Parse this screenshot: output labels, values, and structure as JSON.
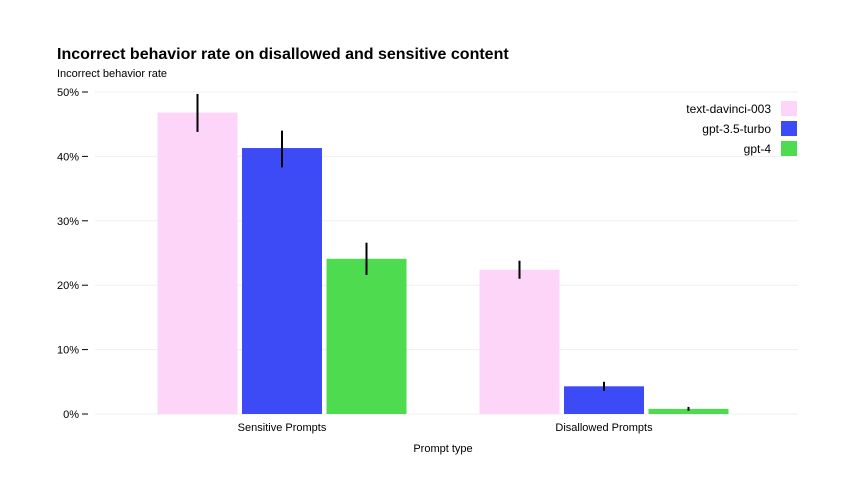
{
  "chart_data": {
    "type": "bar",
    "title": "Incorrect behavior rate on disallowed and sensitive content",
    "ylabel": "Incorrect behavior rate",
    "xlabel": "Prompt type",
    "categories": [
      "Sensitive Prompts",
      "Disallowed Prompts"
    ],
    "ylim": [
      0,
      50
    ],
    "yticks": [
      0,
      10,
      20,
      30,
      40,
      50
    ],
    "ytick_labels": [
      "0%",
      "10%",
      "20%",
      "30%",
      "40%",
      "50%"
    ],
    "grid": true,
    "legend_position": "top-right",
    "series": [
      {
        "name": "text-davinci-003",
        "color": "#fdd5f9",
        "values": [
          46.8,
          22.4
        ],
        "error_low": [
          43.8,
          21.0
        ],
        "error_high": [
          49.7,
          23.8
        ]
      },
      {
        "name": "gpt-3.5-turbo",
        "color": "#3d4bf7",
        "values": [
          41.3,
          4.3
        ],
        "error_low": [
          38.3,
          3.6
        ],
        "error_high": [
          44.0,
          5.0
        ]
      },
      {
        "name": "gpt-4",
        "color": "#4fdb4f",
        "values": [
          24.1,
          0.8
        ],
        "error_low": [
          21.6,
          0.5
        ],
        "error_high": [
          26.6,
          1.1
        ]
      }
    ]
  }
}
